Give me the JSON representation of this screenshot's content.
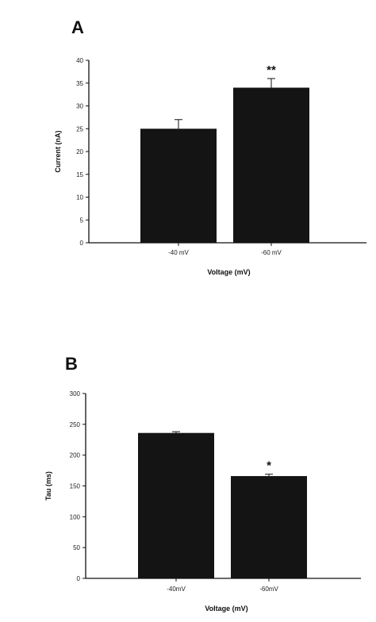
{
  "chart_data": [
    {
      "type": "bar",
      "panel_label": "A",
      "categories": [
        "-40 mV",
        "-60 mV"
      ],
      "values": [
        25,
        34
      ],
      "errors": [
        2,
        2
      ],
      "significance": [
        "",
        "**"
      ],
      "xlabel": "Voltage (mV)",
      "ylabel": "Current (nA)",
      "ylim": [
        0,
        40
      ],
      "yticks": [
        0,
        5,
        10,
        15,
        20,
        25,
        30,
        35,
        40
      ],
      "bar_color": "#141414",
      "grid": false
    },
    {
      "type": "bar",
      "panel_label": "B",
      "categories": [
        "-40mV",
        "-60mV"
      ],
      "values": [
        236,
        166
      ],
      "errors": [
        2,
        3
      ],
      "significance": [
        "",
        "*"
      ],
      "xlabel": "Voltage (mV)",
      "ylabel": "Tau (ms)",
      "ylim": [
        0,
        300
      ],
      "yticks": [
        0,
        50,
        100,
        150,
        200,
        250,
        300
      ],
      "bar_color": "#141414",
      "grid": false
    }
  ]
}
